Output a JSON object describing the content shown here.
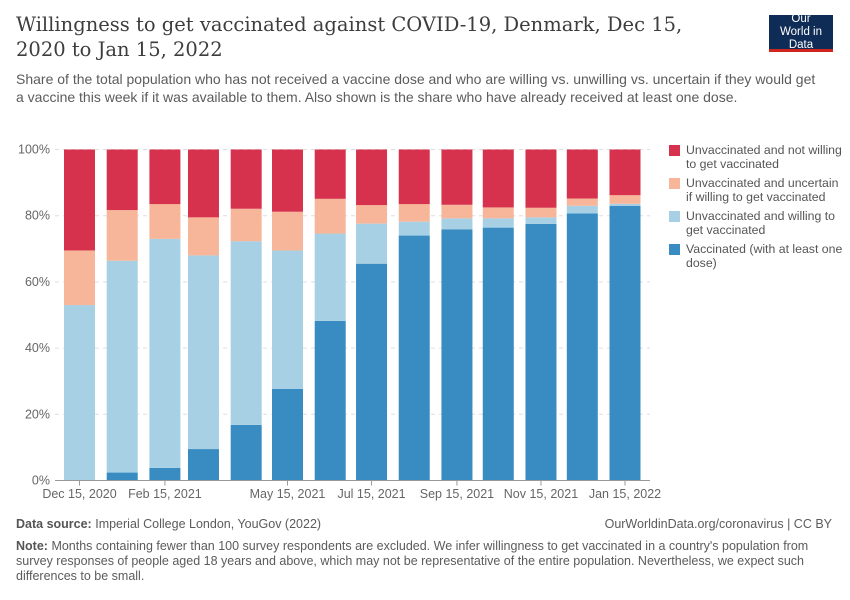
{
  "title": "Willingness to get vaccinated against COVID-19, Denmark, Dec 15, 2020 to Jan 15, 2022",
  "subtitle": "Share of the total population who has not received a vaccine dose and who are willing vs. unwilling vs. uncertain if they would get a vaccine this week if it was available to them. Also shown is the share who have already received at least one dose.",
  "logo": "Our World in Data",
  "footer": {
    "source_label": "Data source:",
    "source": "Imperial College London, YouGov (2022)",
    "url": "OurWorldinData.org/coronavirus | CC BY",
    "note_label": "Note:",
    "note": "Months containing fewer than 100 survey respondents are excluded. We infer willingness to get vaccinated in a country's population from survey responses of people aged 18 years and above, which may not be representative of the entire population. Nevertheless, we expect such differences to be small."
  },
  "chart_data": {
    "type": "bar",
    "stacked": true,
    "ylim": [
      0,
      100
    ],
    "yticks": [
      "0%",
      "20%",
      "40%",
      "60%",
      "80%",
      "100%"
    ],
    "grid": true,
    "legend_position": "right",
    "x": [
      "2020-12-15",
      "2021-01-15",
      "2021-02-15",
      "2021-03-15",
      "2021-04-15",
      "2021-05-15",
      "2021-06-15",
      "2021-07-15",
      "2021-08-15",
      "2021-09-15",
      "2021-10-15",
      "2021-11-15",
      "2021-12-15",
      "2022-01-15"
    ],
    "xtick_labels": [
      [
        "2020-12-15",
        "Dec 15, 2020"
      ],
      [
        "2021-02-15",
        "Feb 15, 2021"
      ],
      [
        "2021-05-15",
        "May 15, 2021"
      ],
      [
        "2021-07-15",
        "Jul 15, 2021"
      ],
      [
        "2021-09-15",
        "Sep 15, 2021"
      ],
      [
        "2021-11-15",
        "Nov 15, 2021"
      ],
      [
        "2022-01-15",
        "Jan 15, 2022"
      ]
    ],
    "series": [
      {
        "name": "Vaccinated (with at least one dose)",
        "color": "#388cc2",
        "values": [
          0,
          2.4,
          3.8,
          9.5,
          16.8,
          27.7,
          48.2,
          65.5,
          74.0,
          75.9,
          76.4,
          77.5,
          80.7,
          83.0
        ]
      },
      {
        "name": "Unvaccinated and willing to get vaccinated",
        "color": "#a8d0e4",
        "values": [
          53.0,
          64.0,
          69.2,
          58.5,
          55.5,
          41.8,
          26.4,
          12.1,
          4.2,
          3.3,
          2.8,
          2.0,
          2.3,
          0.6
        ]
      },
      {
        "name": "Unvaccinated and uncertain if willing to get vaccinated",
        "color": "#f7b699",
        "values": [
          16.5,
          15.3,
          10.5,
          11.5,
          9.8,
          11.7,
          10.5,
          5.6,
          5.3,
          4.1,
          3.3,
          2.9,
          2.2,
          2.6
        ]
      },
      {
        "name": "Unvaccinated and not willing to get vaccinated",
        "color": "#d6324e",
        "values": [
          30.5,
          18.3,
          16.5,
          20.5,
          17.9,
          18.8,
          14.9,
          16.8,
          16.5,
          16.7,
          17.5,
          17.6,
          14.8,
          13.8
        ]
      }
    ]
  }
}
